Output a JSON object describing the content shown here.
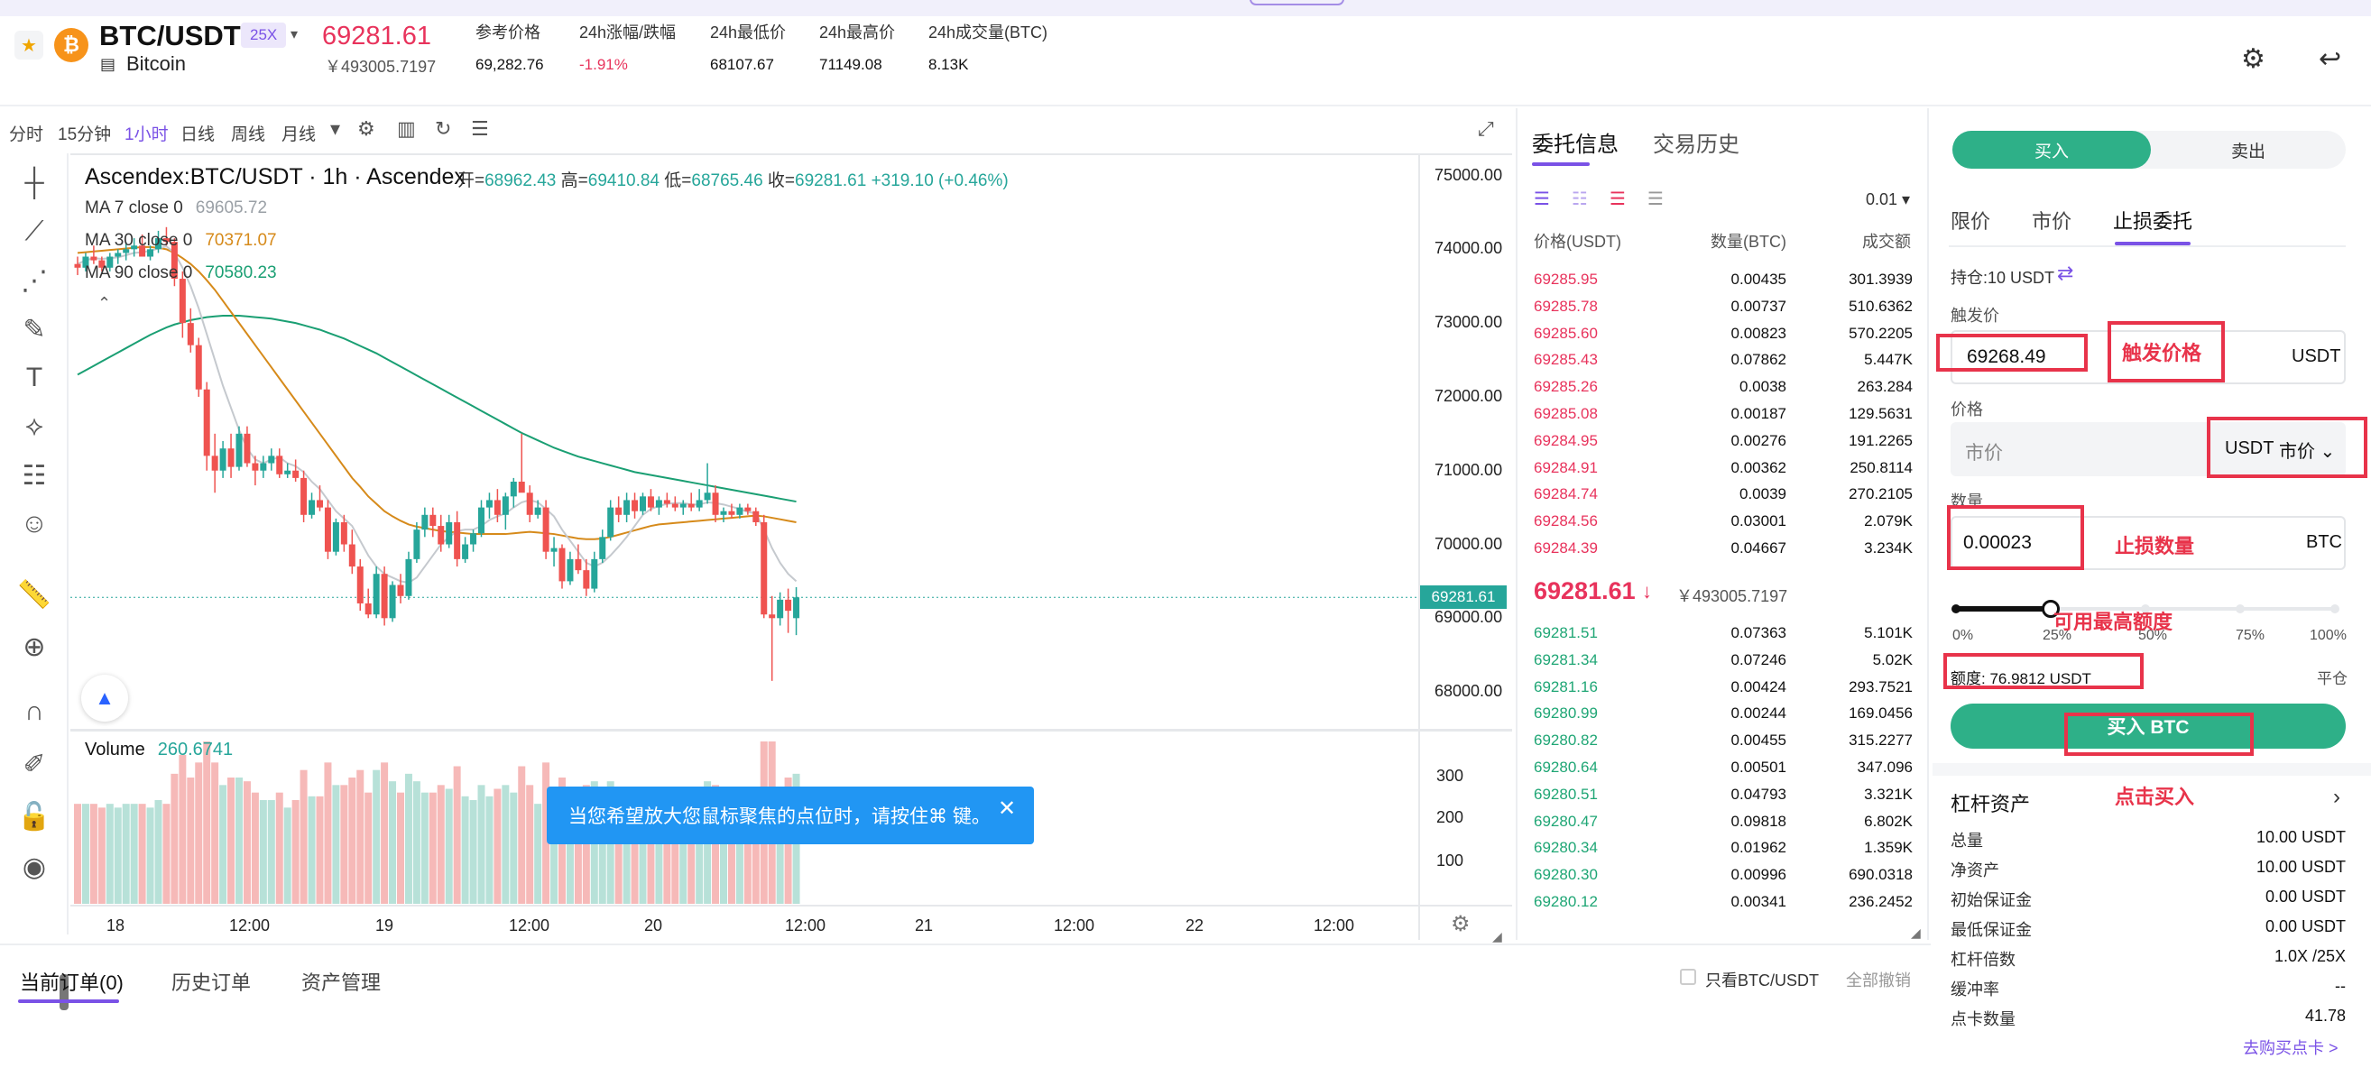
{
  "header": {
    "pair": "BTC/USDT",
    "leverage_badge": "25X",
    "coin_fullname": "Bitcoin",
    "last_price": "69281.61",
    "cny_price": "￥493005.7197",
    "stats": [
      {
        "label": "参考价格",
        "value": "69,282.76"
      },
      {
        "label": "24h涨幅/跌幅",
        "value": "-1.91%"
      },
      {
        "label": "24h最低价",
        "value": "68107.67"
      },
      {
        "label": "24h最高价",
        "value": "71149.08"
      },
      {
        "label": "24h成交量(BTC)",
        "value": "8.13K"
      }
    ],
    "icons": [
      "star-icon",
      "bitcoin-icon",
      "document-icon",
      "gear-icon",
      "undo-icon"
    ]
  },
  "chart_toolbar": {
    "timeframes": [
      "分时",
      "15分钟",
      "1小时",
      "日线",
      "周线",
      "月线"
    ],
    "active_timeframe": "1小时"
  },
  "chart": {
    "legend_title": "Ascendex:BTC/USDT · 1h · Ascendex",
    "ohlc": {
      "open_label": "开=",
      "open": "68962.43",
      "high_label": "高=",
      "high": "69410.84",
      "low_label": "低=",
      "low": "68765.46",
      "close_label": "收=",
      "close": "69281.61",
      "change": "+319.10 (+0.46%)"
    },
    "ma": [
      {
        "label": "MA 7 close 0",
        "value": "69605.72",
        "color": "#9aa0a6"
      },
      {
        "label": "MA 30 close 0",
        "value": "70371.07",
        "color": "#d68a1a"
      },
      {
        "label": "MA 90 close 0",
        "value": "70580.23",
        "color": "#1a9f73"
      }
    ],
    "volume_label": "Volume",
    "volume_value": "260.6741",
    "price_ticks": [
      "75000.00",
      "74000.00",
      "73000.00",
      "72000.00",
      "71000.00",
      "70000.00",
      "69000.00",
      "68000.00"
    ],
    "current_price_tag": "69281.61",
    "volume_ticks": [
      "300",
      "200",
      "100"
    ],
    "time_ticks": [
      "18",
      "12:00",
      "19",
      "12:00",
      "20",
      "12:00",
      "21",
      "12:00",
      "22",
      "12:00"
    ],
    "hint": "当您希望放大您鼠标聚焦的点位时，请按住⌘ 键。"
  },
  "chart_data": {
    "type": "candlestick",
    "y_range": [
      67500,
      75300
    ],
    "up_color": "#26a69a",
    "down_color": "#ef5350",
    "candles": [
      [
        73800,
        73900,
        73650,
        73750
      ],
      [
        73750,
        73950,
        73700,
        73900
      ],
      [
        73900,
        74050,
        73800,
        73850
      ],
      [
        73850,
        73900,
        73700,
        73750
      ],
      [
        73750,
        73950,
        73700,
        73900
      ],
      [
        73900,
        74000,
        73800,
        73950
      ],
      [
        73950,
        74100,
        73850,
        74000
      ],
      [
        74000,
        74150,
        73900,
        74050
      ],
      [
        74050,
        74200,
        73950,
        73900
      ],
      [
        73900,
        74050,
        73850,
        74000
      ],
      [
        74000,
        74250,
        73950,
        74150
      ],
      [
        74150,
        74300,
        74050,
        74100
      ],
      [
        74100,
        74150,
        73500,
        73600
      ],
      [
        73600,
        73700,
        72800,
        73000
      ],
      [
        73000,
        73200,
        72600,
        72700
      ],
      [
        72700,
        72800,
        72000,
        72100
      ],
      [
        72100,
        72200,
        71000,
        71200
      ],
      [
        71200,
        71500,
        70700,
        71000
      ],
      [
        71000,
        71400,
        70900,
        71300
      ],
      [
        71300,
        71500,
        70900,
        71050
      ],
      [
        71050,
        71600,
        71000,
        71500
      ],
      [
        71500,
        71600,
        71050,
        71100
      ],
      [
        71100,
        71200,
        70800,
        71000
      ],
      [
        71000,
        71200,
        70900,
        71100
      ],
      [
        71100,
        71300,
        71000,
        71200
      ],
      [
        71200,
        71300,
        70900,
        70950
      ],
      [
        70950,
        71100,
        70900,
        71000
      ],
      [
        71000,
        71150,
        70850,
        70900
      ],
      [
        70900,
        71000,
        70300,
        70400
      ],
      [
        70400,
        70700,
        70350,
        70600
      ],
      [
        70600,
        70800,
        70450,
        70500
      ],
      [
        70500,
        70600,
        69800,
        69900
      ],
      [
        69900,
        70350,
        69850,
        70300
      ],
      [
        70300,
        70400,
        69900,
        70000
      ],
      [
        70000,
        70200,
        69600,
        69700
      ],
      [
        69700,
        69800,
        69100,
        69200
      ],
      [
        69200,
        69400,
        69000,
        69050
      ],
      [
        69050,
        69700,
        69000,
        69600
      ],
      [
        69600,
        69700,
        68900,
        69000
      ],
      [
        69000,
        69500,
        68950,
        69450
      ],
      [
        69450,
        69600,
        69200,
        69300
      ],
      [
        69300,
        69900,
        69250,
        69800
      ],
      [
        69800,
        70300,
        69750,
        70200
      ],
      [
        70200,
        70500,
        70100,
        70400
      ],
      [
        70400,
        70500,
        70100,
        70250
      ],
      [
        70250,
        70400,
        69900,
        70000
      ],
      [
        70000,
        70400,
        69950,
        70300
      ],
      [
        70300,
        70450,
        69700,
        69800
      ],
      [
        69800,
        70100,
        69750,
        70000
      ],
      [
        70000,
        70200,
        69900,
        70150
      ],
      [
        70150,
        70600,
        70100,
        70500
      ],
      [
        70500,
        70700,
        70350,
        70600
      ],
      [
        70600,
        70750,
        70300,
        70400
      ],
      [
        70400,
        70700,
        70200,
        70650
      ],
      [
        70650,
        70900,
        70500,
        70850
      ],
      [
        70850,
        71500,
        70750,
        70700
      ],
      [
        70700,
        70800,
        70300,
        70400
      ],
      [
        70400,
        70600,
        70350,
        70500
      ],
      [
        70500,
        70600,
        69800,
        69900
      ],
      [
        69900,
        70100,
        69700,
        69950
      ],
      [
        69950,
        70000,
        69400,
        69500
      ],
      [
        69500,
        69900,
        69450,
        69800
      ],
      [
        69800,
        70000,
        69600,
        69650
      ],
      [
        69650,
        69800,
        69300,
        69400
      ],
      [
        69400,
        69900,
        69350,
        69800
      ],
      [
        69800,
        70200,
        69750,
        70100
      ],
      [
        70100,
        70600,
        70050,
        70500
      ],
      [
        70500,
        70650,
        70300,
        70400
      ],
      [
        70400,
        70700,
        70300,
        70600
      ],
      [
        70600,
        70700,
        70350,
        70450
      ],
      [
        70450,
        70700,
        70400,
        70650
      ],
      [
        70650,
        70750,
        70450,
        70500
      ],
      [
        70500,
        70650,
        70400,
        70600
      ],
      [
        70600,
        70700,
        70500,
        70550
      ],
      [
        70550,
        70650,
        70450,
        70500
      ],
      [
        70500,
        70600,
        70400,
        70550
      ],
      [
        70550,
        70700,
        70450,
        70500
      ],
      [
        70500,
        70750,
        70450,
        70600
      ],
      [
        70600,
        71100,
        70550,
        70700
      ],
      [
        70700,
        70800,
        70300,
        70400
      ],
      [
        70400,
        70500,
        70300,
        70450
      ],
      [
        70450,
        70550,
        70350,
        70400
      ],
      [
        70400,
        70550,
        70350,
        70500
      ],
      [
        70500,
        70550,
        70400,
        70450
      ],
      [
        70450,
        70500,
        70250,
        70300
      ],
      [
        70300,
        70400,
        69000,
        69050
      ],
      [
        69050,
        69300,
        68150,
        69000
      ],
      [
        69000,
        69350,
        68900,
        69250
      ],
      [
        69250,
        69400,
        68800,
        69100
      ],
      [
        69000,
        69420,
        68770,
        69282
      ]
    ],
    "ma7": [
      73800,
      73850,
      73880,
      73870,
      73880,
      73890,
      73920,
      73950,
      73960,
      73980,
      74010,
      74040,
      73950,
      73750,
      73500,
      73200,
      72850,
      72500,
      72150,
      71850,
      71550,
      71300,
      71150,
      71100,
      71150,
      71180,
      71100,
      71060,
      70980,
      70850,
      70750,
      70600,
      70450,
      70350,
      70250,
      70050,
      69850,
      69700,
      69600,
      69550,
      69500,
      69480,
      69550,
      69700,
      69850,
      70000,
      70100,
      70180,
      70200,
      70200,
      70250,
      70330,
      70380,
      70420,
      70500,
      70570,
      70600,
      70570,
      70480,
      70380,
      70200,
      70050,
      69900,
      69750,
      69700,
      69750,
      69850,
      69970,
      70100,
      70250,
      70400,
      70480,
      70520,
      70550,
      70560,
      70560,
      70540,
      70540,
      70570,
      70560,
      70540,
      70510,
      70480,
      70440,
      70420,
      70200,
      69950,
      69750,
      69600,
      69500
    ],
    "ma30": [
      73950,
      73960,
      73970,
      73980,
      73990,
      74000,
      74010,
      74020,
      74030,
      74030,
      74020,
      74000,
      73950,
      73880,
      73800,
      73700,
      73580,
      73450,
      73300,
      73150,
      73000,
      72850,
      72700,
      72550,
      72400,
      72250,
      72100,
      71950,
      71800,
      71650,
      71500,
      71350,
      71200,
      71050,
      70900,
      70780,
      70650,
      70550,
      70450,
      70380,
      70320,
      70270,
      70240,
      70220,
      70200,
      70180,
      70170,
      70160,
      70150,
      70140,
      70140,
      70140,
      70140,
      70140,
      70150,
      70160,
      70170,
      70160,
      70150,
      70140,
      70120,
      70100,
      70080,
      70070,
      70070,
      70080,
      70100,
      70130,
      70160,
      70190,
      70220,
      70250,
      70270,
      70280,
      70290,
      70300,
      70310,
      70320,
      70330,
      70340,
      70350,
      70360,
      70370,
      70380,
      70390,
      70380,
      70360,
      70340,
      70320,
      70300
    ],
    "ma90": [
      72300,
      72360,
      72420,
      72480,
      72540,
      72600,
      72660,
      72720,
      72780,
      72840,
      72890,
      72940,
      72980,
      73010,
      73040,
      73060,
      73080,
      73090,
      73100,
      73100,
      73100,
      73090,
      73080,
      73070,
      73060,
      73040,
      73020,
      73000,
      72970,
      72940,
      72910,
      72870,
      72830,
      72790,
      72740,
      72690,
      72640,
      72590,
      72530,
      72470,
      72410,
      72350,
      72290,
      72230,
      72170,
      72110,
      72050,
      71990,
      71930,
      71870,
      71810,
      71750,
      71690,
      71630,
      71570,
      71510,
      71460,
      71410,
      71360,
      71310,
      71270,
      71230,
      71190,
      71160,
      71130,
      71100,
      71070,
      71040,
      71010,
      70980,
      70960,
      70940,
      70920,
      70900,
      70880,
      70860,
      70840,
      70820,
      70800,
      70780,
      70760,
      70740,
      70720,
      70700,
      70680,
      70660,
      70640,
      70620,
      70600,
      70580
    ]
  },
  "orderbook": {
    "tabs": [
      "委托信息",
      "交易历史"
    ],
    "precision": "0.01",
    "columns": [
      "价格(USDT)",
      "数量(BTC)",
      "成交额"
    ],
    "asks": [
      {
        "p": "69285.95",
        "q": "0.00435",
        "t": "301.3939"
      },
      {
        "p": "69285.78",
        "q": "0.00737",
        "t": "510.6362"
      },
      {
        "p": "69285.60",
        "q": "0.00823",
        "t": "570.2205"
      },
      {
        "p": "69285.43",
        "q": "0.07862",
        "t": "5.447K"
      },
      {
        "p": "69285.26",
        "q": "0.0038",
        "t": "263.284"
      },
      {
        "p": "69285.08",
        "q": "0.00187",
        "t": "129.5631"
      },
      {
        "p": "69284.95",
        "q": "0.00276",
        "t": "191.2265"
      },
      {
        "p": "69284.91",
        "q": "0.00362",
        "t": "250.8114"
      },
      {
        "p": "69284.74",
        "q": "0.0039",
        "t": "270.2105"
      },
      {
        "p": "69284.56",
        "q": "0.03001",
        "t": "2.079K"
      },
      {
        "p": "69284.39",
        "q": "0.04667",
        "t": "3.234K"
      }
    ],
    "mid_price": "69281.61",
    "mid_arrow": "↓",
    "mid_cny": "￥493005.7197",
    "bids": [
      {
        "p": "69281.51",
        "q": "0.07363",
        "t": "5.101K"
      },
      {
        "p": "69281.34",
        "q": "0.07246",
        "t": "5.02K"
      },
      {
        "p": "69281.16",
        "q": "0.00424",
        "t": "293.7521"
      },
      {
        "p": "69280.99",
        "q": "0.00244",
        "t": "169.0456"
      },
      {
        "p": "69280.82",
        "q": "0.00455",
        "t": "315.2277"
      },
      {
        "p": "69280.64",
        "q": "0.00501",
        "t": "347.096"
      },
      {
        "p": "69280.51",
        "q": "0.04793",
        "t": "3.321K"
      },
      {
        "p": "69280.47",
        "q": "0.09818",
        "t": "6.802K"
      },
      {
        "p": "69280.34",
        "q": "0.01962",
        "t": "1.359K"
      },
      {
        "p": "69280.30",
        "q": "0.00996",
        "t": "690.0318"
      },
      {
        "p": "69280.12",
        "q": "0.00341",
        "t": "236.2452"
      }
    ]
  },
  "trade": {
    "buy_label": "买入",
    "sell_label": "卖出",
    "order_types": [
      "限价",
      "市价",
      "止损委托"
    ],
    "holding": "持仓:10 USDT",
    "trigger_label": "触发价",
    "trigger_value": "69268.49",
    "trigger_unit": "USDT",
    "price_label": "价格",
    "price_placeholder": "市价",
    "price_unit": "USDT",
    "price_mode": "市价",
    "qty_label": "数量",
    "qty_value": "0.00023",
    "qty_unit": "BTC",
    "slider_marks": [
      "0%",
      "25%",
      "50%",
      "75%",
      "100%"
    ],
    "slider_percent": 25,
    "quota": "额度: 76.9812 USDT",
    "close_position": "平仓",
    "submit_label": "买入 BTC"
  },
  "leverage_assets": {
    "title": "杠杆资产",
    "rows": [
      {
        "k": "总量",
        "v": "10.00 USDT"
      },
      {
        "k": "净资产",
        "v": "10.00 USDT"
      },
      {
        "k": "初始保证金",
        "v": "0.00 USDT"
      },
      {
        "k": "最低保证金",
        "v": "0.00 USDT"
      },
      {
        "k": "杠杆倍数",
        "v": "1.0X /25X"
      },
      {
        "k": "缓冲率",
        "v": "--"
      },
      {
        "k": "点卡数量",
        "v": "41.78"
      }
    ],
    "buy_card": "去购买点卡 >"
  },
  "bottom": {
    "tabs": [
      "当前订单(0)",
      "历史订单",
      "资产管理"
    ],
    "only_pair": "只看BTC/USDT",
    "cancel_all": "全部撤销"
  },
  "annotations": {
    "trigger_price": "触发价格",
    "stop_qty": "止损数量",
    "max_quota": "可用最高额度",
    "click_buy": "点击买入"
  }
}
